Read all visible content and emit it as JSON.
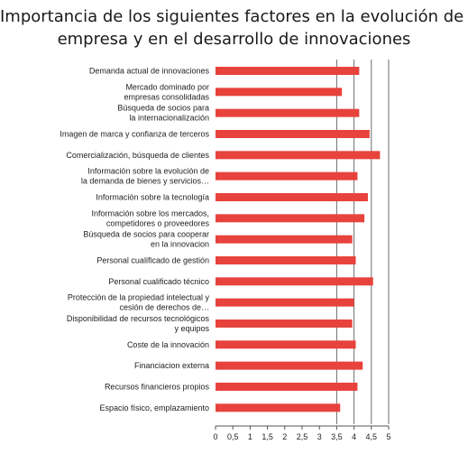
{
  "chart_data": {
    "type": "bar",
    "orientation": "horizontal",
    "title_lines": [
      "Importancia de los siguientes factores en la evolución de la",
      "empresa y en el desarrollo de innovaciones"
    ],
    "categories": [
      [
        "Demanda actual de innovaciones"
      ],
      [
        "Mercado dominado por",
        "empresas consolidadas"
      ],
      [
        "Búsqueda de socios para",
        "la internacionalización"
      ],
      [
        "Imagen de marca y confianza de terceros"
      ],
      [
        "Comercialización, búsqueda de clientes"
      ],
      [
        "Información sobre la evolución de",
        "la demanda de bienes y servicios…"
      ],
      [
        "Información sobre la tecnología"
      ],
      [
        "Información sobre los mercados,",
        "competidores o proveedores"
      ],
      [
        "Búsqueda de socios para cooperar",
        "en la innovacion"
      ],
      [
        "Personal cualificado de gestión"
      ],
      [
        "Personal cualificado técnico"
      ],
      [
        "Protección de la propiedad intelectual y",
        "cesión de derechos de…"
      ],
      [
        "Disponibilidad de recursos tecnológicos",
        "y equipos"
      ],
      [
        "Coste de la innovación"
      ],
      [
        "Financiacion externa"
      ],
      [
        "Recursos financieros propios"
      ],
      [
        "Espacio físico, emplazamiento"
      ]
    ],
    "values": [
      4.15,
      3.65,
      4.15,
      4.45,
      4.75,
      4.1,
      4.4,
      4.3,
      3.95,
      4.05,
      4.55,
      4.0,
      3.95,
      4.05,
      4.25,
      4.1,
      3.6
    ],
    "xlim": [
      0,
      5
    ],
    "xticks": [
      "0",
      "0,5",
      "1",
      "1,5",
      "2",
      "2,5",
      "3",
      "3,5",
      "4",
      "4,5",
      "5"
    ],
    "grid": "vertical lines at 3.5, 4, 4.5, 5",
    "bar_color": "#e8423c"
  }
}
